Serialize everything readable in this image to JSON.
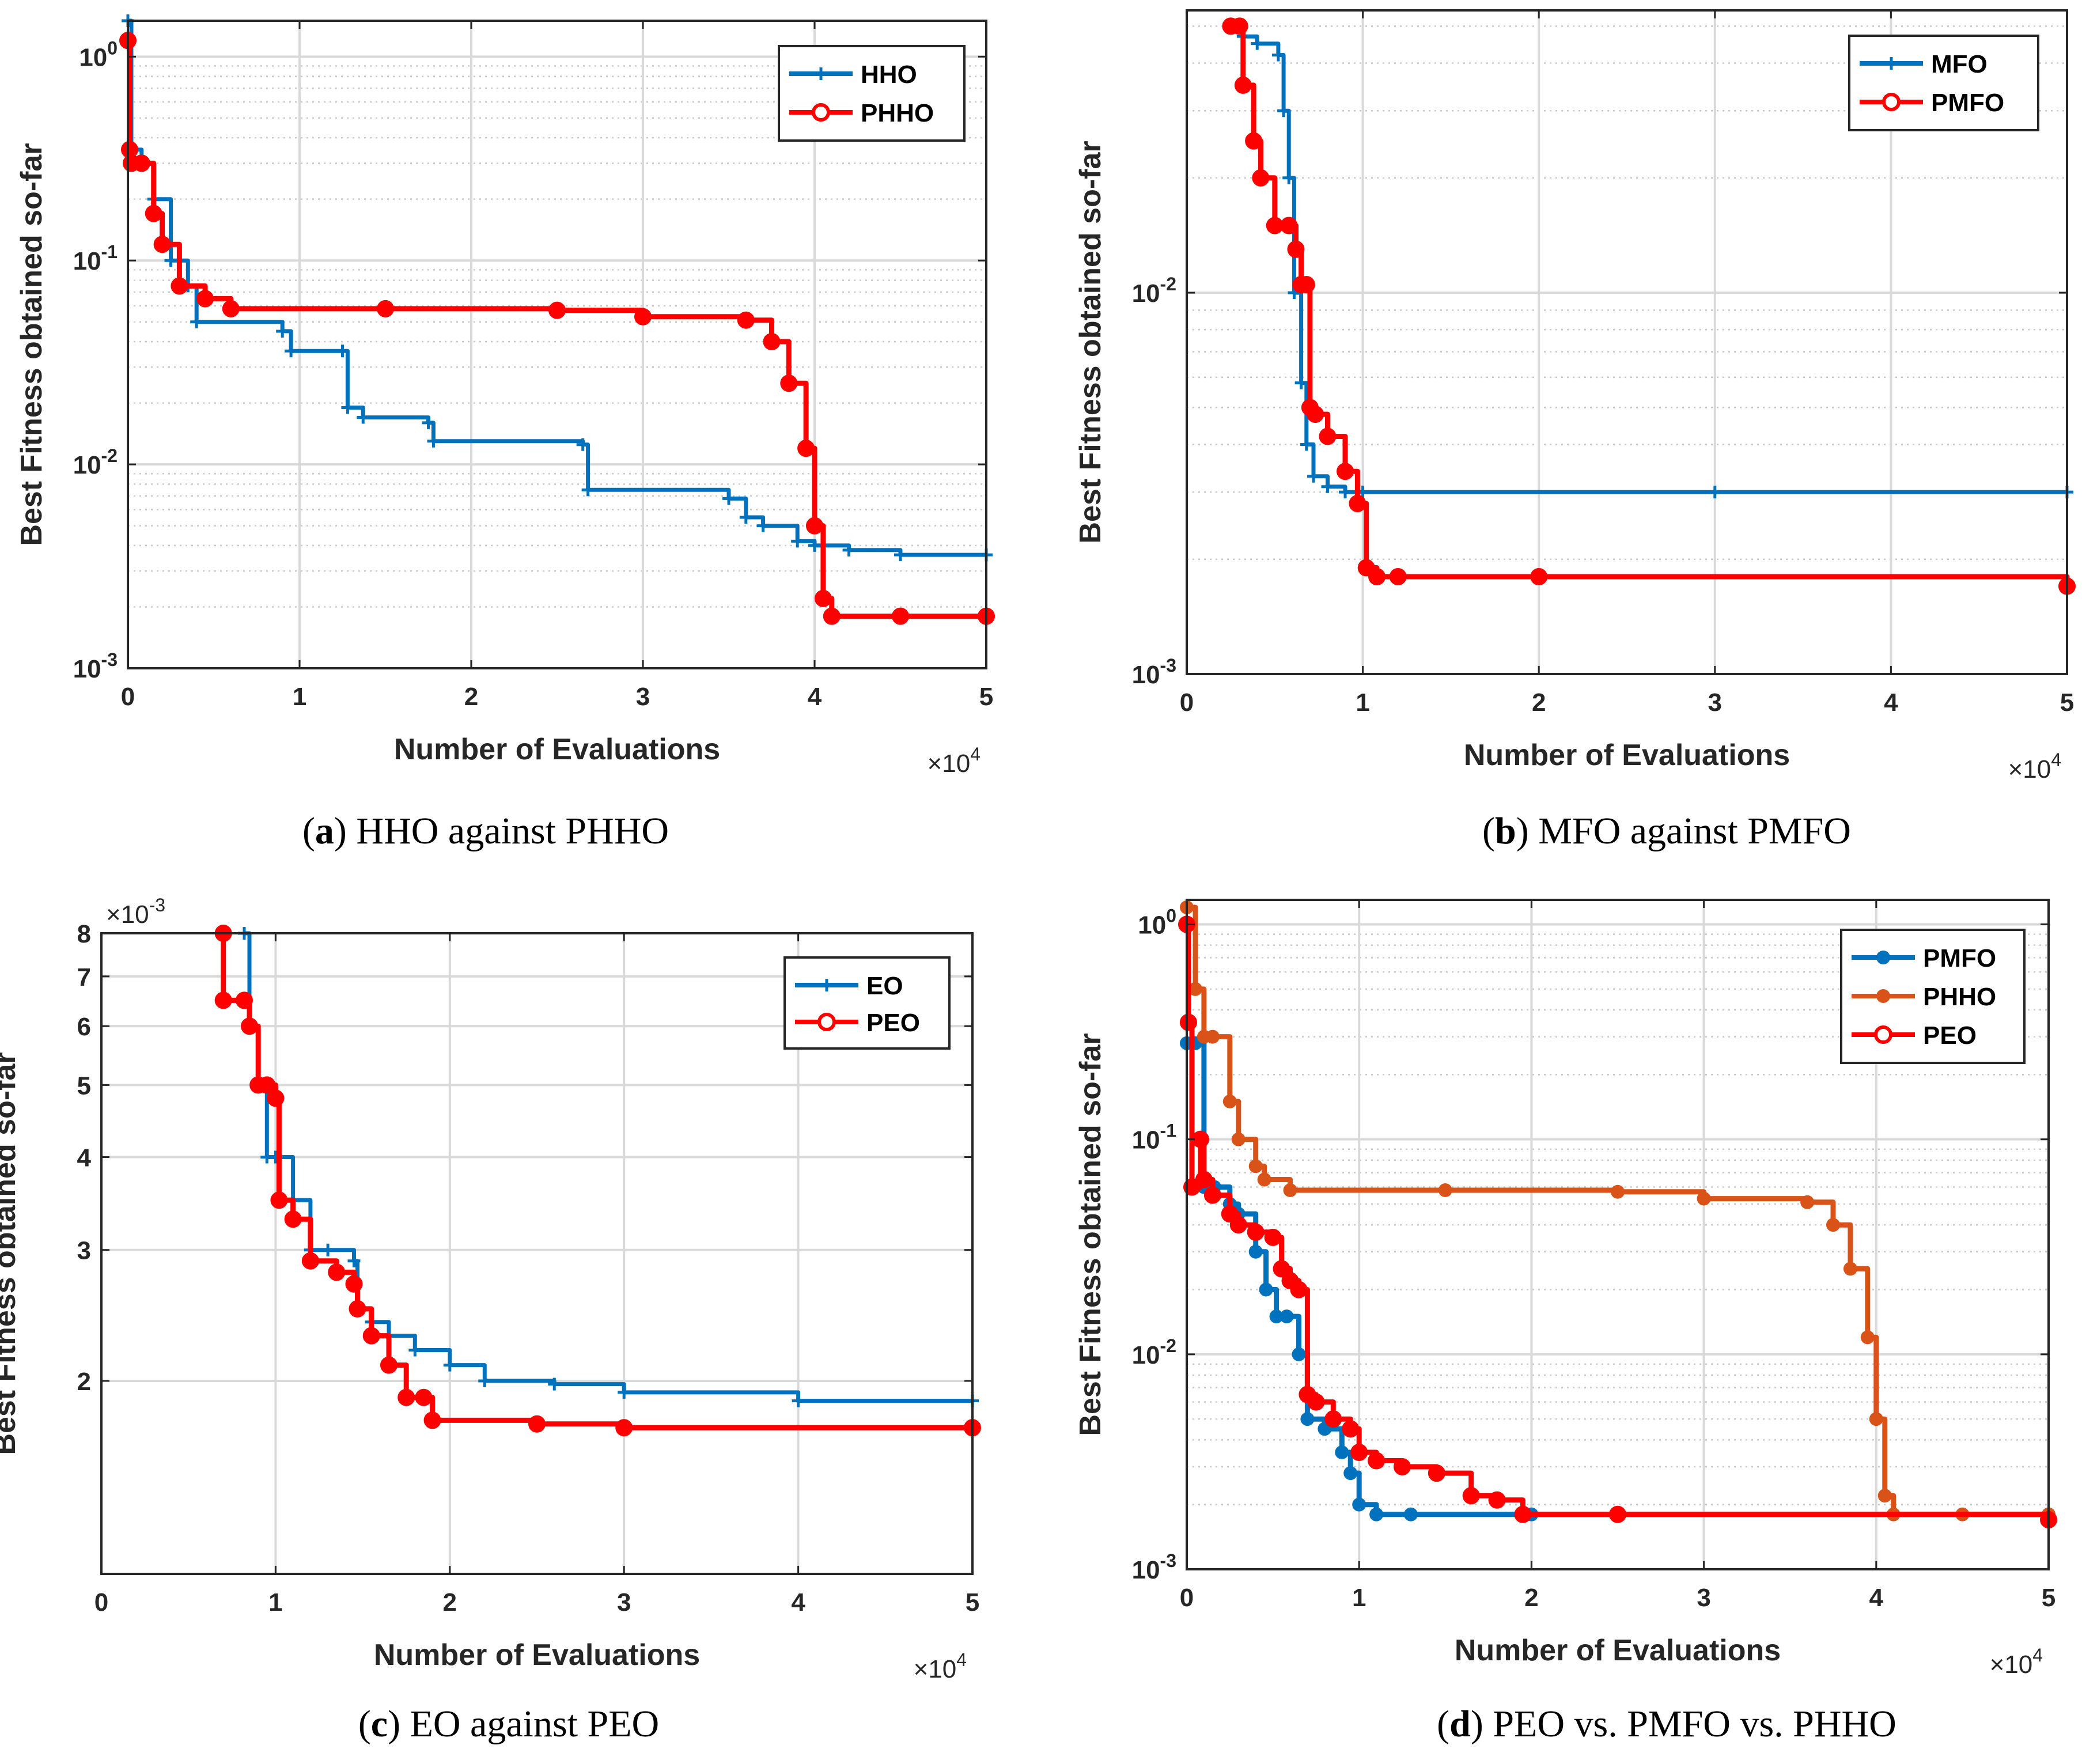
{
  "figure": {
    "captions": [
      {
        "tag": "a",
        "text": " HHO against PHHO"
      },
      {
        "tag": "b",
        "text": " MFO against PMFO"
      },
      {
        "tag": "c",
        "text": " EO against PEO"
      },
      {
        "tag": "d",
        "text": " PEO vs. PMFO vs. PHHO"
      }
    ]
  },
  "chart_data": [
    {
      "id": "a",
      "type": "line",
      "xlabel": "Number of Evaluations",
      "ylabel": "Best Fitness obtained so-far",
      "x_multiplier": "×10^4",
      "xlim": [
        0,
        50000
      ],
      "ylim": [
        0.001,
        1.5
      ],
      "yscale": "log",
      "xticks": [
        "0",
        "1",
        "2",
        "3",
        "4",
        "5"
      ],
      "yticks": [
        {
          "v": 1,
          "label": "10^0"
        },
        {
          "v": 0.1,
          "label": "10^-1"
        },
        {
          "v": 0.01,
          "label": "10^-2"
        },
        {
          "v": 0.001,
          "label": "10^-3"
        }
      ],
      "legend": "top-right",
      "series": [
        {
          "name": "HHO",
          "color": "#0072BD",
          "marker": "plus",
          "x": [
            0,
            200,
            800,
            1500,
            2500,
            3500,
            4000,
            9000,
            9500,
            12500,
            12800,
            13700,
            17500,
            17800,
            26500,
            26800,
            35000,
            36000,
            37000,
            39000,
            40000,
            42000,
            45000,
            50000
          ],
          "y": [
            1.5,
            0.35,
            0.3,
            0.2,
            0.1,
            0.075,
            0.05,
            0.045,
            0.036,
            0.036,
            0.019,
            0.017,
            0.016,
            0.013,
            0.0125,
            0.0075,
            0.0068,
            0.0055,
            0.005,
            0.0042,
            0.004,
            0.0038,
            0.0036,
            0.0036
          ]
        },
        {
          "name": "PHHO",
          "color": "#FF0000",
          "marker": "circle",
          "x": [
            0,
            100,
            200,
            800,
            1500,
            2000,
            3000,
            4500,
            6000,
            15000,
            25000,
            30000,
            36000,
            37500,
            38500,
            39500,
            40000,
            40500,
            41000,
            45000,
            50000
          ],
          "y": [
            1.2,
            0.35,
            0.3,
            0.3,
            0.17,
            0.12,
            0.075,
            0.065,
            0.058,
            0.058,
            0.057,
            0.053,
            0.051,
            0.04,
            0.025,
            0.012,
            0.005,
            0.0022,
            0.0018,
            0.0018,
            0.0018
          ]
        }
      ]
    },
    {
      "id": "b",
      "type": "line",
      "xlabel": "Number of Evaluations",
      "ylabel": "Best Fitness obtained so-far",
      "x_multiplier": "×10^4",
      "xlim": [
        0,
        50000
      ],
      "ylim": [
        0.001,
        0.055
      ],
      "yscale": "log",
      "xticks": [
        "0",
        "1",
        "2",
        "3",
        "4",
        "5"
      ],
      "yticks": [
        {
          "v": 0.01,
          "label": "10^-2"
        },
        {
          "v": 0.001,
          "label": "10^-3"
        }
      ],
      "legend": "top-right",
      "series": [
        {
          "name": "MFO",
          "color": "#0072BD",
          "marker": "plus",
          "x": [
            2500,
            3200,
            4000,
            5200,
            5500,
            5800,
            6100,
            6500,
            6800,
            7200,
            8000,
            9000,
            10000,
            30000,
            50000
          ],
          "y": [
            0.05,
            0.047,
            0.045,
            0.042,
            0.03,
            0.02,
            0.01,
            0.0058,
            0.004,
            0.0033,
            0.0031,
            0.003,
            0.003,
            0.003,
            0.003
          ]
        },
        {
          "name": "PMFO",
          "color": "#FF0000",
          "marker": "circle",
          "x": [
            2500,
            3000,
            3200,
            3800,
            4200,
            5000,
            5800,
            6200,
            6500,
            6800,
            7000,
            7300,
            8000,
            9000,
            9700,
            10200,
            10800,
            12000,
            20000,
            50000
          ],
          "y": [
            0.05,
            0.05,
            0.035,
            0.025,
            0.02,
            0.015,
            0.015,
            0.013,
            0.0105,
            0.0105,
            0.005,
            0.0048,
            0.0042,
            0.0034,
            0.0028,
            0.0019,
            0.0018,
            0.0018,
            0.0018,
            0.0017
          ]
        }
      ]
    },
    {
      "id": "c",
      "type": "line",
      "xlabel": "Number of Evaluations",
      "ylabel": "Best Fitness obtained so-far",
      "x_multiplier": "×10^4",
      "y_multiplier": "×10^-3",
      "xlim": [
        0,
        50000
      ],
      "ylim": [
        0.0011,
        0.008
      ],
      "yscale": "log",
      "xticks": [
        "0",
        "1",
        "2",
        "3",
        "4",
        "5"
      ],
      "yticks": [
        {
          "v": 0.002,
          "label": "2"
        },
        {
          "v": 0.003,
          "label": "3"
        },
        {
          "v": 0.004,
          "label": "4"
        },
        {
          "v": 0.005,
          "label": "5"
        },
        {
          "v": 0.006,
          "label": "6"
        },
        {
          "v": 0.007,
          "label": "7"
        },
        {
          "v": 0.008,
          "label": "8"
        }
      ],
      "legend": "top-right",
      "series": [
        {
          "name": "EO",
          "color": "#0072BD",
          "marker": "plus",
          "x": [
            8200,
            8500,
            9000,
            9500,
            10000,
            11000,
            12000,
            13000,
            14500,
            14700,
            15500,
            16500,
            18000,
            20000,
            22000,
            26000,
            30000,
            40000,
            50000
          ],
          "y": [
            0.008,
            0.006,
            0.005,
            0.004,
            0.004,
            0.0035,
            0.003,
            0.003,
            0.0029,
            0.0025,
            0.0024,
            0.0023,
            0.0022,
            0.0021,
            0.002,
            0.00198,
            0.00193,
            0.00188,
            0.00188
          ]
        },
        {
          "name": "PEO",
          "color": "#FF0000",
          "marker": "circle",
          "x": [
            7000,
            7000,
            8200,
            8500,
            9000,
            9500,
            10000,
            10200,
            11000,
            12000,
            13500,
            14500,
            14700,
            15500,
            16500,
            17500,
            18500,
            19000,
            25000,
            30000,
            50000
          ],
          "y": [
            0.008,
            0.0065,
            0.0065,
            0.006,
            0.005,
            0.005,
            0.0048,
            0.0035,
            0.0033,
            0.0029,
            0.0028,
            0.0027,
            0.0025,
            0.0023,
            0.0021,
            0.0019,
            0.0019,
            0.00177,
            0.00175,
            0.00173,
            0.00173
          ]
        }
      ]
    },
    {
      "id": "d",
      "type": "line",
      "xlabel": "Number of Evaluations",
      "ylabel": "Best Fitness obtained so-far",
      "x_multiplier": "×10^4",
      "xlim": [
        0,
        50000
      ],
      "ylim": [
        0.001,
        1.3
      ],
      "yscale": "log",
      "xticks": [
        "0",
        "1",
        "2",
        "3",
        "4",
        "5"
      ],
      "yticks": [
        {
          "v": 1,
          "label": "10^0"
        },
        {
          "v": 0.1,
          "label": "10^-1"
        },
        {
          "v": 0.01,
          "label": "10^-2"
        },
        {
          "v": 0.001,
          "label": "10^-3"
        }
      ],
      "legend": "top-right",
      "series": [
        {
          "name": "PMFO",
          "color": "#0072BD",
          "marker": "dot",
          "x": [
            0,
            500,
            1000,
            1200,
            1600,
            2500,
            3000,
            4000,
            4600,
            5200,
            5800,
            6500,
            7000,
            8000,
            9000,
            9500,
            10000,
            11000,
            13000,
            20000,
            50000
          ],
          "y": [
            0.28,
            0.28,
            0.06,
            0.06,
            0.06,
            0.05,
            0.045,
            0.03,
            0.02,
            0.015,
            0.015,
            0.01,
            0.005,
            0.0045,
            0.0035,
            0.0028,
            0.002,
            0.0018,
            0.0018,
            0.0018,
            0.0018
          ]
        },
        {
          "name": "PHHO",
          "color": "#D95319",
          "marker": "dot",
          "x": [
            0,
            500,
            1000,
            1500,
            2500,
            3000,
            4000,
            4500,
            6000,
            15000,
            25000,
            30000,
            36000,
            37500,
            38500,
            39500,
            40000,
            40500,
            41000,
            45000,
            50000
          ],
          "y": [
            1.2,
            0.5,
            0.3,
            0.3,
            0.15,
            0.1,
            0.075,
            0.065,
            0.058,
            0.058,
            0.057,
            0.053,
            0.051,
            0.04,
            0.025,
            0.012,
            0.005,
            0.0022,
            0.0018,
            0.0018,
            0.0018
          ]
        },
        {
          "name": "PEO",
          "color": "#FF0000",
          "marker": "circle",
          "x": [
            0,
            100,
            300,
            800,
            1000,
            1500,
            2500,
            3000,
            4000,
            5000,
            5500,
            6000,
            6500,
            7000,
            7500,
            8500,
            9500,
            10000,
            11000,
            12500,
            14500,
            16500,
            18000,
            19500,
            25000,
            50000
          ],
          "y": [
            1.0,
            0.35,
            0.06,
            0.1,
            0.065,
            0.055,
            0.045,
            0.04,
            0.037,
            0.035,
            0.025,
            0.022,
            0.02,
            0.0065,
            0.006,
            0.005,
            0.0045,
            0.0035,
            0.0032,
            0.003,
            0.0028,
            0.0022,
            0.0021,
            0.0018,
            0.0018,
            0.0017
          ]
        }
      ]
    }
  ]
}
